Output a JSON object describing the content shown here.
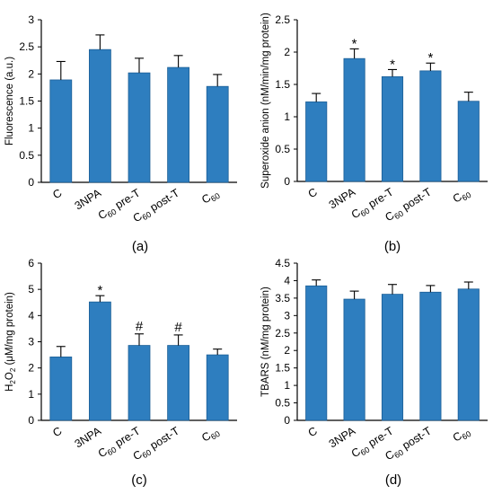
{
  "colors": {
    "bar": "#2e7ebf",
    "bar_edge": "#1b5e96",
    "axis": "#000000"
  },
  "chart_data": [
    {
      "panel": "(a)",
      "type": "bar",
      "ylabel": "Fluorescence (a.u.)",
      "ylim": [
        0,
        3
      ],
      "yticks": [
        "0",
        "0.5",
        "1",
        "1.5",
        "2",
        "2.5",
        "3"
      ],
      "categories": [
        {
          "main": "C",
          "sub": ""
        },
        {
          "main": "3NPA",
          "sub": ""
        },
        {
          "main": "C",
          "sub": "60",
          "tail": " pre-T"
        },
        {
          "main": "C",
          "sub": "60",
          "tail": " post-T"
        },
        {
          "main": "C",
          "sub": "60",
          "tail": ""
        }
      ],
      "values": [
        1.89,
        2.45,
        2.02,
        2.12,
        1.77
      ],
      "errors": [
        0.34,
        0.27,
        0.27,
        0.22,
        0.22
      ],
      "marks": [
        "",
        "",
        "",
        "",
        ""
      ]
    },
    {
      "panel": "(b)",
      "type": "bar",
      "ylabel": "Superoxide anion (nM/min/mg protein)",
      "ylim": [
        0,
        2.5
      ],
      "yticks": [
        "0",
        "0.5",
        "1",
        "1.5",
        "2",
        "2.5"
      ],
      "categories": [
        {
          "main": "C",
          "sub": ""
        },
        {
          "main": "3NPA",
          "sub": ""
        },
        {
          "main": "C",
          "sub": "60",
          "tail": " pre-T"
        },
        {
          "main": "C",
          "sub": "60",
          "tail": " post-T"
        },
        {
          "main": "C",
          "sub": "60",
          "tail": ""
        }
      ],
      "values": [
        1.23,
        1.9,
        1.62,
        1.71,
        1.24
      ],
      "errors": [
        0.13,
        0.15,
        0.11,
        0.12,
        0.14
      ],
      "marks": [
        "",
        "*",
        "*",
        "*",
        ""
      ]
    },
    {
      "panel": "(c)",
      "type": "bar",
      "ylabel_parts": {
        "pre": "H",
        "sub": "2",
        "mid": "O",
        "sub2": "2",
        "post": " (μM/mg protein)"
      },
      "ylim": [
        0,
        6
      ],
      "yticks": [
        "0",
        "1",
        "2",
        "3",
        "4",
        "5",
        "6"
      ],
      "categories": [
        {
          "main": "C",
          "sub": ""
        },
        {
          "main": "3NPA",
          "sub": ""
        },
        {
          "main": "C",
          "sub": "60",
          "tail": " pre-T"
        },
        {
          "main": "C",
          "sub": "60",
          "tail": " post-T"
        },
        {
          "main": "C",
          "sub": "60",
          "tail": ""
        }
      ],
      "values": [
        2.42,
        4.52,
        2.86,
        2.86,
        2.5
      ],
      "errors": [
        0.4,
        0.24,
        0.44,
        0.4,
        0.22
      ],
      "marks": [
        "",
        "*",
        "#",
        "#",
        ""
      ]
    },
    {
      "panel": "(d)",
      "type": "bar",
      "ylabel": "TBARS (nM/mg protein)",
      "ylim": [
        0,
        4.5
      ],
      "yticks": [
        "0",
        "0.5",
        "1",
        "1.5",
        "2",
        "2.5",
        "3",
        "3.5",
        "4",
        "4.5"
      ],
      "categories": [
        {
          "main": "C",
          "sub": ""
        },
        {
          "main": "3NPA",
          "sub": ""
        },
        {
          "main": "C",
          "sub": "60",
          "tail": " pre-T"
        },
        {
          "main": "C",
          "sub": "60",
          "tail": " post-T"
        },
        {
          "main": "C",
          "sub": "60",
          "tail": ""
        }
      ],
      "values": [
        3.85,
        3.47,
        3.61,
        3.67,
        3.76
      ],
      "errors": [
        0.17,
        0.23,
        0.28,
        0.19,
        0.2
      ],
      "marks": [
        "",
        "",
        "",
        "",
        ""
      ]
    }
  ]
}
